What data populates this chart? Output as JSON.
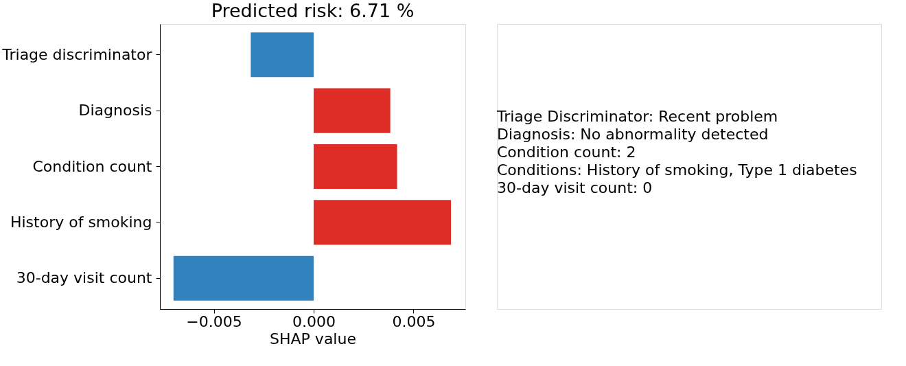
{
  "chart_data": {
    "type": "bar",
    "orientation": "horizontal",
    "title": "Predicted risk: 6.71 %",
    "xlabel": "SHAP value",
    "categories": [
      "Triage discriminator",
      "Diagnosis",
      "Condition count",
      "History of smoking",
      "30-day visit count"
    ],
    "values": [
      -0.00315,
      0.00384,
      0.00418,
      0.00688,
      -0.00702
    ],
    "colors": [
      "#3182bd",
      "#de2d26",
      "#de2d26",
      "#de2d26",
      "#3182bd"
    ],
    "xlim": [
      -0.0077,
      0.0076
    ],
    "xticks": [
      {
        "value": -0.005,
        "label": "−0.005"
      },
      {
        "value": 0.0,
        "label": "0.000"
      },
      {
        "value": 0.005,
        "label": "0.005"
      }
    ],
    "grid": false,
    "annotations": [
      "Triage Discriminator: Recent problem",
      "Diagnosis: No abnormality detected",
      "Condition count: 2",
      "Conditions: History of smoking, Type 1 diabetes",
      "30-day visit count: 0"
    ]
  }
}
